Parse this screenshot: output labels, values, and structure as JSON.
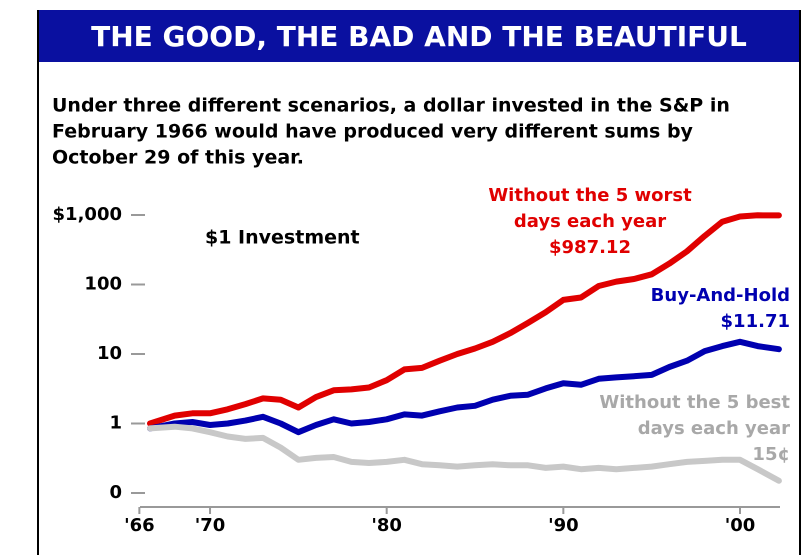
{
  "chart_data": {
    "type": "line",
    "title": "THE GOOD, THE BAD AND THE BEAUTIFUL",
    "subtitle_lines": [
      "Under three different scenarios, a dollar invested in the S&P in",
      "February 1966 would have produced very different sums by",
      "October 29 of this year."
    ],
    "annotation": "$1 Investment",
    "log_scale": true,
    "xlim": [
      1965,
      2003
    ],
    "xticks": [
      {
        "value": 1966,
        "label": "'66"
      },
      {
        "value": 1970,
        "label": "'70"
      },
      {
        "value": 1980,
        "label": "'80"
      },
      {
        "value": 1990,
        "label": "'90"
      },
      {
        "value": 2000,
        "label": "'00"
      }
    ],
    "ylim": [
      0.1,
      1000
    ],
    "yticks": [
      {
        "value": 1000,
        "label": "$1,000"
      },
      100,
      10,
      1,
      {
        "value": 0.1,
        "label": "0"
      }
    ],
    "x": [
      1966.6,
      1968,
      1969,
      1970,
      1971,
      1972,
      1973,
      1974,
      1975,
      1976,
      1977,
      1978,
      1979,
      1980,
      1981,
      1982,
      1983,
      1984,
      1985,
      1986,
      1987,
      1988,
      1989,
      1990,
      1991,
      1992,
      1993,
      1994,
      1995,
      1996,
      1997,
      1998,
      1999,
      2000,
      2001,
      2002.2
    ],
    "series": [
      {
        "label_lines": [
          "Without the 5 worst",
          "days each year",
          "$987.12"
        ],
        "color": "#e00000",
        "values": [
          1.0,
          1.3,
          1.4,
          1.4,
          1.6,
          1.9,
          2.3,
          2.2,
          1.7,
          2.4,
          3.0,
          3.1,
          3.3,
          4.2,
          6,
          6.3,
          8,
          10,
          12,
          15,
          20,
          28,
          40,
          60,
          65,
          95,
          110,
          120,
          140,
          200,
          300,
          500,
          800,
          950,
          990,
          987.12
        ]
      },
      {
        "name": "Buy-And-Hold",
        "label_lines": [
          "$11.71"
        ],
        "color": "#0000b0",
        "values": [
          0.85,
          1.0,
          1.05,
          0.95,
          1.0,
          1.1,
          1.25,
          1.0,
          0.75,
          0.95,
          1.15,
          1.0,
          1.05,
          1.15,
          1.35,
          1.3,
          1.5,
          1.7,
          1.8,
          2.2,
          2.5,
          2.6,
          3.2,
          3.8,
          3.6,
          4.4,
          4.6,
          4.8,
          5.0,
          6.5,
          8,
          11,
          13,
          15,
          13,
          11.71
        ]
      },
      {
        "label_lines": [
          "Without the 5  best",
          "days each year",
          "15¢"
        ],
        "color": "#c8c8c8",
        "values": [
          0.85,
          0.9,
          0.85,
          0.75,
          0.65,
          0.6,
          0.62,
          0.45,
          0.3,
          0.32,
          0.33,
          0.28,
          0.27,
          0.28,
          0.3,
          0.26,
          0.25,
          0.24,
          0.25,
          0.26,
          0.25,
          0.25,
          0.23,
          0.24,
          0.22,
          0.23,
          0.22,
          0.23,
          0.24,
          0.26,
          0.28,
          0.29,
          0.3,
          0.3,
          0.22,
          0.15
        ]
      }
    ]
  }
}
